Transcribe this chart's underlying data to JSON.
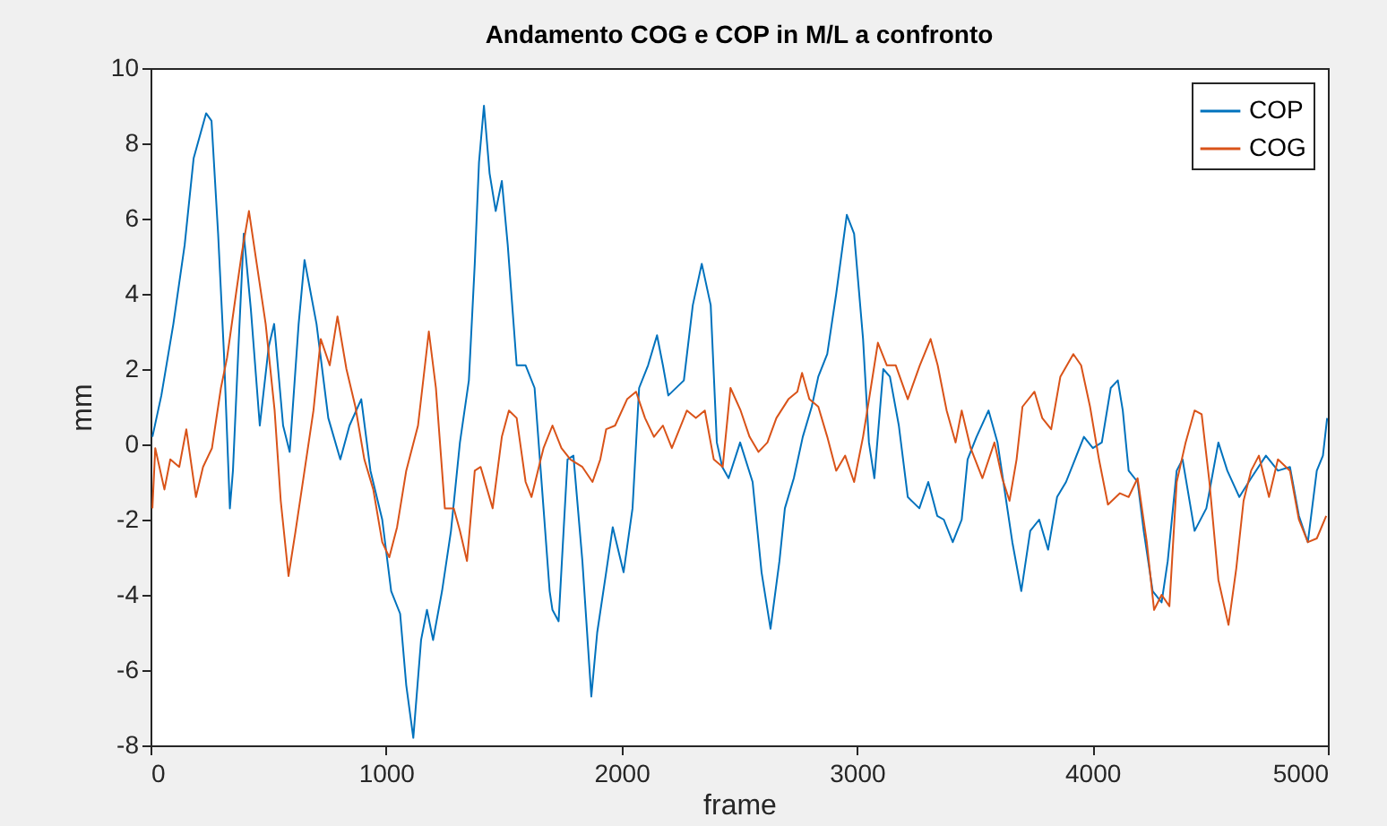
{
  "chart_data": {
    "type": "line",
    "title": "Andamento COG e COP in M/L a confronto",
    "xlabel": "frame",
    "ylabel": "mm",
    "xlim": [
      0,
      5000
    ],
    "ylim": [
      -8,
      10
    ],
    "xticks": [
      0,
      1000,
      2000,
      3000,
      4000,
      5000
    ],
    "yticks": [
      -8,
      -6,
      -4,
      -2,
      0,
      2,
      4,
      6,
      8,
      10
    ],
    "legend": "top right",
    "grid": false,
    "series": [
      {
        "name": "COP",
        "color": "#0072bd",
        "x": [
          8,
          46,
          97,
          145,
          183,
          236,
          259,
          287,
          312,
          337,
          350,
          375,
          396,
          426,
          464,
          502,
          525,
          563,
          591,
          629,
          654,
          705,
          755,
          806,
          845,
          895,
          934,
          984,
          1022,
          1060,
          1086,
          1116,
          1149,
          1174,
          1200,
          1238,
          1276,
          1314,
          1352,
          1377,
          1395,
          1416,
          1440,
          1466,
          1492,
          1517,
          1555,
          1593,
          1631,
          1669,
          1695,
          1707,
          1733,
          1771,
          1796,
          1834,
          1872,
          1897,
          1935,
          1963,
          2009,
          2047,
          2075,
          2113,
          2151,
          2176,
          2199,
          2265,
          2303,
          2341,
          2379,
          2405,
          2428,
          2455,
          2504,
          2557,
          2595,
          2633,
          2671,
          2694,
          2732,
          2770,
          2808,
          2836,
          2874,
          2912,
          2957,
          2988,
          3026,
          3051,
          3074,
          3112,
          3140,
          3178,
          3216,
          3265,
          3303,
          3341,
          3369,
          3407,
          3445,
          3470,
          3508,
          3559,
          3597,
          3622,
          3660,
          3698,
          3736,
          3774,
          3812,
          3850,
          3888,
          3926,
          3964,
          4002,
          4040,
          4078,
          4108,
          4129,
          4154,
          4192,
          4218,
          4256,
          4294,
          4320,
          4358,
          4383,
          4434,
          4484,
          4535,
          4573,
          4624,
          4674,
          4737,
          4788,
          4839,
          4877,
          4915,
          4953,
          4979,
          4997
        ],
        "values": [
          0.2,
          1.3,
          3.2,
          5.3,
          7.6,
          8.8,
          8.6,
          5.6,
          2.4,
          -1.7,
          -0.7,
          2.8,
          5.6,
          3.6,
          0.5,
          2.6,
          3.2,
          0.5,
          -0.2,
          3.2,
          4.9,
          3.2,
          0.7,
          -0.4,
          0.5,
          1.2,
          -0.7,
          -2.0,
          -3.9,
          -4.5,
          -6.4,
          -7.8,
          -5.2,
          -4.4,
          -5.2,
          -3.9,
          -2.3,
          0.05,
          1.7,
          4.8,
          7.5,
          9.0,
          7.2,
          6.2,
          7.0,
          5.3,
          2.1,
          2.1,
          1.5,
          -1.7,
          -3.9,
          -4.4,
          -4.7,
          -0.4,
          -0.3,
          -3.1,
          -6.7,
          -5.0,
          -3.4,
          -2.2,
          -3.4,
          -1.7,
          1.5,
          2.1,
          2.9,
          2.1,
          1.3,
          1.7,
          3.7,
          4.8,
          3.7,
          0.05,
          -0.6,
          -0.9,
          0.05,
          -1.0,
          -3.4,
          -4.9,
          -3.1,
          -1.7,
          -0.9,
          0.2,
          1.0,
          1.8,
          2.4,
          4.0,
          6.1,
          5.6,
          2.8,
          0.05,
          -0.9,
          2.0,
          1.8,
          0.5,
          -1.4,
          -1.7,
          -1.0,
          -1.9,
          -2.0,
          -2.6,
          -2.0,
          -0.4,
          0.2,
          0.9,
          0.05,
          -1.0,
          -2.6,
          -3.9,
          -2.3,
          -2.0,
          -2.8,
          -1.4,
          -1.0,
          -0.4,
          0.2,
          -0.1,
          0.05,
          1.5,
          1.7,
          0.9,
          -0.7,
          -1.0,
          -2.3,
          -3.9,
          -4.2,
          -3.1,
          -0.7,
          -0.4,
          -2.3,
          -1.7,
          0.05,
          -0.7,
          -1.4,
          -0.9,
          -0.3,
          -0.7,
          -0.6,
          -1.9,
          -2.6,
          -0.7,
          -0.3,
          0.7
        ]
      },
      {
        "name": "COG",
        "color": "#d95319",
        "x": [
          8,
          20,
          59,
          84,
          122,
          152,
          193,
          223,
          261,
          299,
          325,
          363,
          388,
          418,
          451,
          489,
          527,
          553,
          586,
          616,
          654,
          692,
          723,
          761,
          794,
          832,
          870,
          908,
          946,
          984,
          1014,
          1047,
          1086,
          1136,
          1182,
          1212,
          1250,
          1288,
          1314,
          1344,
          1377,
          1402,
          1453,
          1492,
          1522,
          1555,
          1593,
          1618,
          1657,
          1669,
          1707,
          1745,
          1783,
          1834,
          1877,
          1910,
          1935,
          1973,
          2024,
          2062,
          2100,
          2138,
          2176,
          2214,
          2278,
          2316,
          2354,
          2392,
          2430,
          2463,
          2506,
          2544,
          2582,
          2620,
          2658,
          2709,
          2747,
          2767,
          2798,
          2836,
          2874,
          2912,
          2950,
          2988,
          3026,
          3059,
          3089,
          3127,
          3165,
          3216,
          3267,
          3313,
          3343,
          3381,
          3419,
          3445,
          3483,
          3533,
          3584,
          3617,
          3648,
          3678,
          3703,
          3754,
          3787,
          3825,
          3864,
          3919,
          3952,
          3990,
          4028,
          4066,
          4117,
          4154,
          4192,
          4231,
          4262,
          4294,
          4327,
          4358,
          4396,
          4434,
          4464,
          4497,
          4535,
          4578,
          4611,
          4642,
          4674,
          4707,
          4750,
          4788,
          4839,
          4877,
          4915,
          4953,
          4993
        ],
        "values": [
          -1.7,
          -0.1,
          -1.2,
          -0.4,
          -0.6,
          0.4,
          -1.4,
          -0.6,
          -0.1,
          1.5,
          2.3,
          4.0,
          5.1,
          6.2,
          4.8,
          3.2,
          0.9,
          -1.5,
          -3.5,
          -2.3,
          -0.7,
          0.9,
          2.8,
          2.1,
          3.4,
          2.0,
          1.0,
          -0.4,
          -1.2,
          -2.6,
          -3.0,
          -2.2,
          -0.7,
          0.5,
          3.0,
          1.5,
          -1.7,
          -1.7,
          -2.3,
          -3.1,
          -0.7,
          -0.6,
          -1.7,
          0.2,
          0.9,
          0.7,
          -1.0,
          -1.4,
          -0.4,
          -0.1,
          0.5,
          -0.1,
          -0.4,
          -0.6,
          -1.0,
          -0.4,
          0.4,
          0.5,
          1.2,
          1.4,
          0.7,
          0.2,
          0.5,
          -0.1,
          0.9,
          0.7,
          0.9,
          -0.4,
          -0.6,
          1.5,
          0.9,
          0.2,
          -0.2,
          0.05,
          0.7,
          1.2,
          1.4,
          1.9,
          1.2,
          1.0,
          0.2,
          -0.7,
          -0.3,
          -1.0,
          0.2,
          1.5,
          2.7,
          2.1,
          2.1,
          1.2,
          2.1,
          2.8,
          2.1,
          0.9,
          0.05,
          0.9,
          -0.1,
          -0.9,
          0.05,
          -0.9,
          -1.5,
          -0.4,
          1.0,
          1.4,
          0.7,
          0.4,
          1.8,
          2.4,
          2.1,
          1.0,
          -0.4,
          -1.6,
          -1.3,
          -1.4,
          -0.9,
          -2.6,
          -4.4,
          -4.0,
          -4.3,
          -1.0,
          0.05,
          0.9,
          0.8,
          -1.0,
          -3.6,
          -4.8,
          -3.3,
          -1.5,
          -0.7,
          -0.3,
          -1.4,
          -0.4,
          -0.7,
          -2.0,
          -2.6,
          -2.5,
          -1.9
        ]
      }
    ]
  }
}
